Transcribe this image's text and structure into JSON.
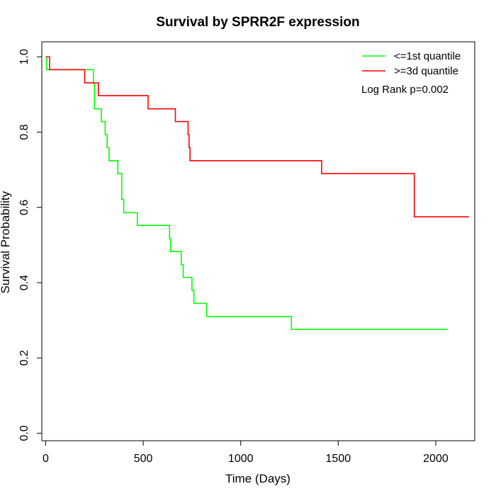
{
  "chart_data": {
    "type": "line",
    "title": "Survival by SPRR2F expression",
    "xlabel": "Time (Days)",
    "ylabel": "Survival Probability",
    "xlim": [
      -20,
      2200
    ],
    "ylim": [
      -0.02,
      1.04
    ],
    "xticks": [
      0,
      500,
      1000,
      1500,
      2000
    ],
    "yticks": [
      0.0,
      0.2,
      0.4,
      0.6,
      0.8,
      1.0
    ],
    "xtick_labels": [
      "0",
      "500",
      "1000",
      "1500",
      "2000"
    ],
    "ytick_labels": [
      "0.0",
      "0.2",
      "0.4",
      "0.6",
      "0.8",
      "1.0"
    ],
    "grid": false,
    "legend_position": "top-right",
    "annotation": "Log Rank p=0.002",
    "series": [
      {
        "name": "<=1st quantile",
        "color": "#00ff00",
        "step": true,
        "x": [
          0,
          5,
          245,
          250,
          285,
          305,
          315,
          325,
          370,
          390,
          400,
          470,
          635,
          640,
          655,
          695,
          705,
          750,
          760,
          825,
          1260,
          2060
        ],
        "y": [
          1.0,
          0.966,
          0.931,
          0.862,
          0.828,
          0.793,
          0.759,
          0.724,
          0.69,
          0.621,
          0.586,
          0.552,
          0.517,
          0.483,
          0.483,
          0.448,
          0.414,
          0.379,
          0.345,
          0.31,
          0.276,
          0.276
        ]
      },
      {
        "name": ">=3d quantile",
        "color": "#ff0000",
        "step": true,
        "x": [
          0,
          20,
          200,
          270,
          525,
          665,
          730,
          735,
          740,
          1415,
          1890,
          2170
        ],
        "y": [
          1.0,
          0.966,
          0.931,
          0.897,
          0.862,
          0.828,
          0.793,
          0.759,
          0.724,
          0.69,
          0.575,
          0.575
        ]
      }
    ]
  }
}
